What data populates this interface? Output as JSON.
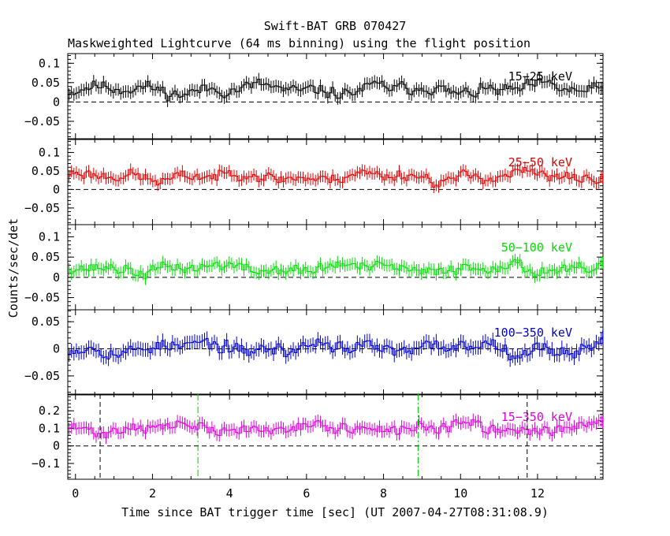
{
  "chart_data": {
    "type": "line",
    "title": "Swift-BAT GRB 070427",
    "subtitle": "Maskweighted Lightcurve (64 ms binning) using the flight position",
    "xlabel": "Time since BAT trigger time [sec] (UT 2007-04-27T08:31:08.9)",
    "ylabel": "Counts/sec/det",
    "xlim": [
      -0.2,
      13.7
    ],
    "xticks": [
      0,
      2,
      4,
      6,
      8,
      10,
      12
    ],
    "xtick_labels": [
      "0",
      "2",
      "4",
      "6",
      "8",
      "10",
      "12"
    ],
    "bin_seconds": 0.064,
    "vertical_markers": [
      {
        "x": 0.64,
        "color": "#000000",
        "style": "dashed",
        "panel": "15-350 keV"
      },
      {
        "x": 11.73,
        "color": "#000000",
        "style": "dashed",
        "panel": "15-350 keV"
      },
      {
        "x": 3.18,
        "color": "#00cc00",
        "style": "dashdot",
        "panel": "15-350 keV"
      },
      {
        "x": 8.9,
        "color": "#00cc00",
        "style": "dashdot",
        "panel": "15-350 keV"
      }
    ],
    "panels": [
      {
        "name": "15-25 keV",
        "label": "15−25 keV",
        "color": "#000000",
        "ylim": [
          -0.095,
          0.125
        ],
        "yticks": [
          -0.05,
          0,
          0.05,
          0.1
        ],
        "ytick_labels": [
          "−0.05",
          "0",
          "0.05",
          "0.1"
        ],
        "mean": 0.032,
        "noise": 0.022,
        "err": 0.016,
        "seed": 11
      },
      {
        "name": "25-50 keV",
        "label": "25−50 keV",
        "color": "#dd0000",
        "ylim": [
          -0.095,
          0.135
        ],
        "yticks": [
          -0.05,
          0,
          0.05,
          0.1
        ],
        "ytick_labels": [
          "−0.05",
          "0",
          "0.05",
          "0.1"
        ],
        "mean": 0.035,
        "noise": 0.022,
        "err": 0.016,
        "seed": 23
      },
      {
        "name": "50-100 keV",
        "label": "50−100 keV",
        "color": "#00dd00",
        "ylim": [
          -0.08,
          0.13
        ],
        "yticks": [
          -0.05,
          0,
          0.05,
          0.1
        ],
        "ytick_labels": [
          "−0.05",
          "0",
          "0.05",
          "0.1"
        ],
        "mean": 0.022,
        "noise": 0.02,
        "err": 0.015,
        "seed": 37
      },
      {
        "name": "100-350 keV",
        "label": "100−350 keV",
        "color": "#0000cc",
        "ylim": [
          -0.085,
          0.072
        ],
        "yticks": [
          -0.05,
          0,
          0.05
        ],
        "ytick_labels": [
          "−0.05",
          "0",
          "0.05"
        ],
        "mean": 0.002,
        "noise": 0.018,
        "err": 0.013,
        "seed": 53
      },
      {
        "name": "15-350 keV",
        "label": "15−350 keV",
        "color": "#dd00dd",
        "ylim": [
          -0.19,
          0.295
        ],
        "yticks": [
          -0.1,
          0,
          0.1,
          0.2
        ],
        "ytick_labels": [
          "−0.1",
          "0",
          "0.1",
          "0.2"
        ],
        "mean": 0.1,
        "noise": 0.045,
        "err": 0.035,
        "seed": 71
      }
    ]
  }
}
